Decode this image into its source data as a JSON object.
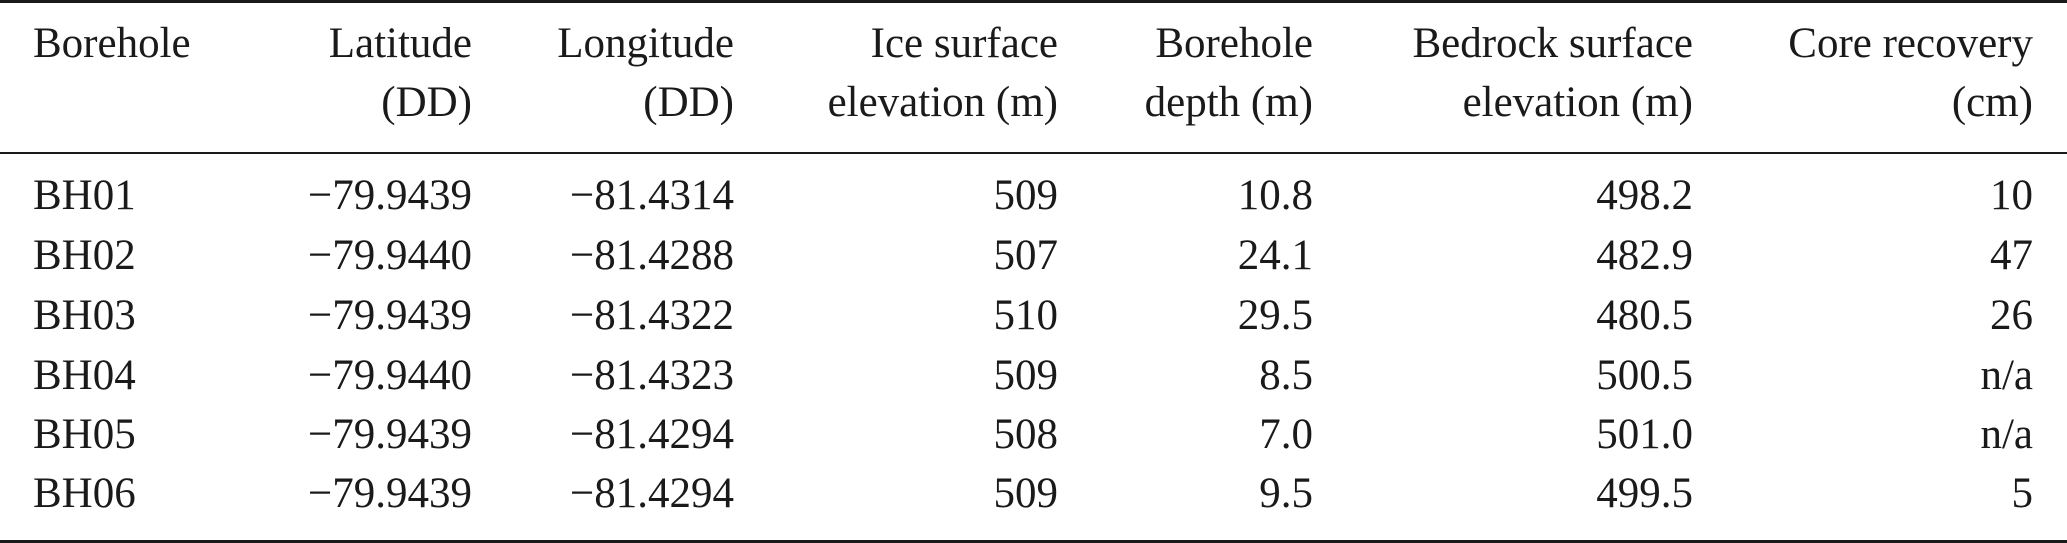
{
  "table": {
    "columns": [
      {
        "line1": "Borehole",
        "line2": ""
      },
      {
        "line1": "Latitude",
        "line2": "(DD)"
      },
      {
        "line1": "Longitude",
        "line2": "(DD)"
      },
      {
        "line1": "Ice surface",
        "line2": "elevation (m)"
      },
      {
        "line1": "Borehole",
        "line2": "depth (m)"
      },
      {
        "line1": "Bedrock surface",
        "line2": "elevation (m)"
      },
      {
        "line1": "Core recovery",
        "line2": "(cm)"
      }
    ],
    "rows": [
      [
        "BH01",
        "−79.9439",
        "−81.4314",
        "509",
        "10.8",
        "498.2",
        "10"
      ],
      [
        "BH02",
        "−79.9440",
        "−81.4288",
        "507",
        "24.1",
        "482.9",
        "47"
      ],
      [
        "BH03",
        "−79.9439",
        "−81.4322",
        "510",
        "29.5",
        "480.5",
        "26"
      ],
      [
        "BH04",
        "−79.9440",
        "−81.4323",
        "509",
        "8.5",
        "500.5",
        "n/a"
      ],
      [
        "BH05",
        "−79.9439",
        "−81.4294",
        "508",
        "7.0",
        "501.0",
        "n/a"
      ],
      [
        "BH06",
        "−79.9439",
        "−81.4294",
        "509",
        "9.5",
        "499.5",
        "5"
      ]
    ]
  }
}
